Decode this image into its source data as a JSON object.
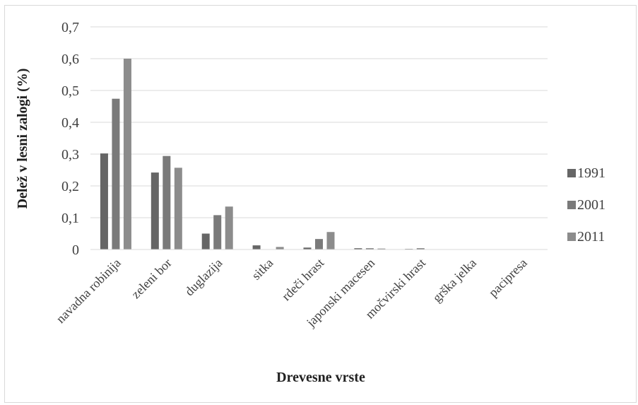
{
  "chart_data": {
    "type": "bar",
    "title": "",
    "xlabel": "Drevesne vrste",
    "ylabel": "Delež v lesni zalogi (%)",
    "ylim": [
      0,
      0.7
    ],
    "yticks": [
      "0",
      "0,1",
      "0,2",
      "0,3",
      "0,4",
      "0,5",
      "0,6",
      "0,7"
    ],
    "grid": "horizontal",
    "legend_position": "right",
    "categories": [
      "navadna robinija",
      "zeleni bor",
      "duglazija",
      "sitka",
      "rdeči hrast",
      "japonski macesen",
      "močvirski hrast",
      "grška jelka",
      "pacipresa"
    ],
    "series": [
      {
        "name": "1991",
        "color": "#666666",
        "values": [
          0.302,
          0.242,
          0.05,
          0.013,
          0.006,
          0.004,
          0.002,
          0.0,
          0.0
        ]
      },
      {
        "name": "2001",
        "color": "#7a7a7a",
        "values": [
          0.474,
          0.294,
          0.108,
          0.0,
          0.033,
          0.004,
          0.004,
          0.0,
          0.0
        ]
      },
      {
        "name": "2011",
        "color": "#8c8c8c",
        "values": [
          0.6,
          0.257,
          0.135,
          0.008,
          0.055,
          0.003,
          0.0,
          0.0,
          0.0
        ]
      }
    ]
  }
}
